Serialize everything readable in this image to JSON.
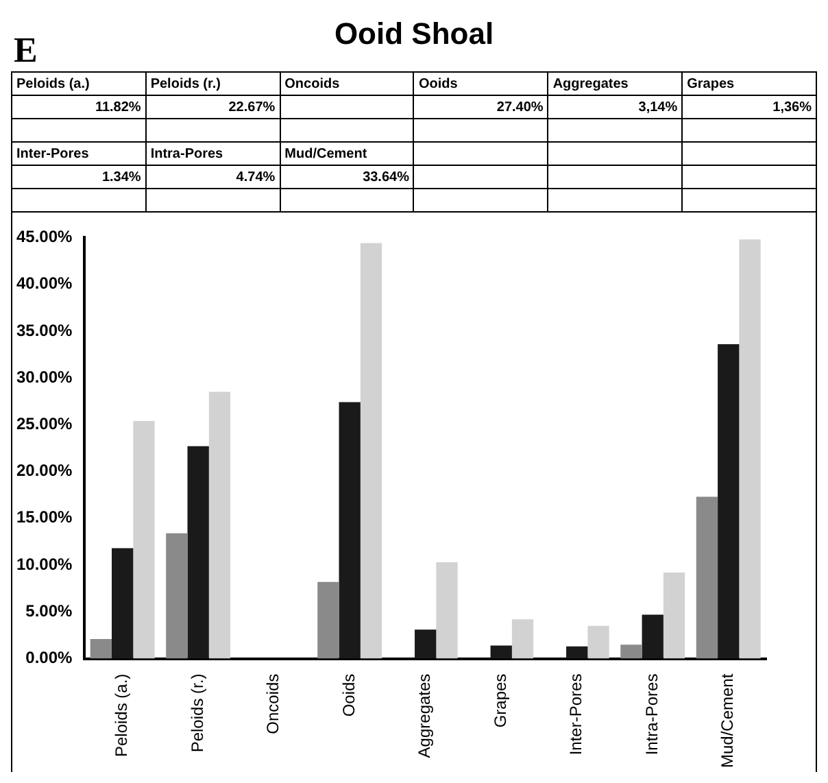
{
  "chart_data": {
    "type": "bar",
    "title": "Ooid Shoal",
    "annotations": [
      "E",
      "11.82%",
      "22.67%",
      "27.40%",
      "3,14%",
      "1,36%",
      "1.34%",
      "4.74%",
      "33.64%"
    ],
    "categories": [
      "Peloids (a.)",
      "Peloids (r.)",
      "Oncoids",
      "Ooids",
      "Aggregates",
      "Grapes",
      "Inter-Pores",
      "Intra-Pores",
      "Mud/Cement"
    ],
    "series": [
      {
        "color": "#8a8a8a",
        "values": [
          2.1,
          13.4,
          0,
          8.2,
          0,
          0,
          0,
          1.5,
          17.3
        ]
      },
      {
        "color": "#1a1a1a",
        "values": [
          11.8,
          22.7,
          0,
          27.4,
          3.1,
          1.4,
          1.3,
          4.7,
          33.6
        ]
      },
      {
        "color": "#d2d2d2",
        "values": [
          25.4,
          28.5,
          0,
          44.4,
          10.3,
          4.2,
          3.5,
          9.2,
          44.8
        ]
      }
    ],
    "ylim": [
      0,
      45
    ],
    "yticks": [
      {
        "value": 0,
        "label": "0.00%"
      },
      {
        "value": 5,
        "label": "5.00%"
      },
      {
        "value": 10,
        "label": "10.00%"
      },
      {
        "value": 15,
        "label": "15.00%"
      },
      {
        "value": 20,
        "label": "20.00%"
      },
      {
        "value": 25,
        "label": "25.00%"
      },
      {
        "value": 30,
        "label": "30.00%"
      },
      {
        "value": 35,
        "label": "35.00%"
      },
      {
        "value": 40,
        "label": "40.00%"
      },
      {
        "value": 45,
        "label": "45.00%"
      }
    ],
    "grid": false,
    "legend": false
  }
}
